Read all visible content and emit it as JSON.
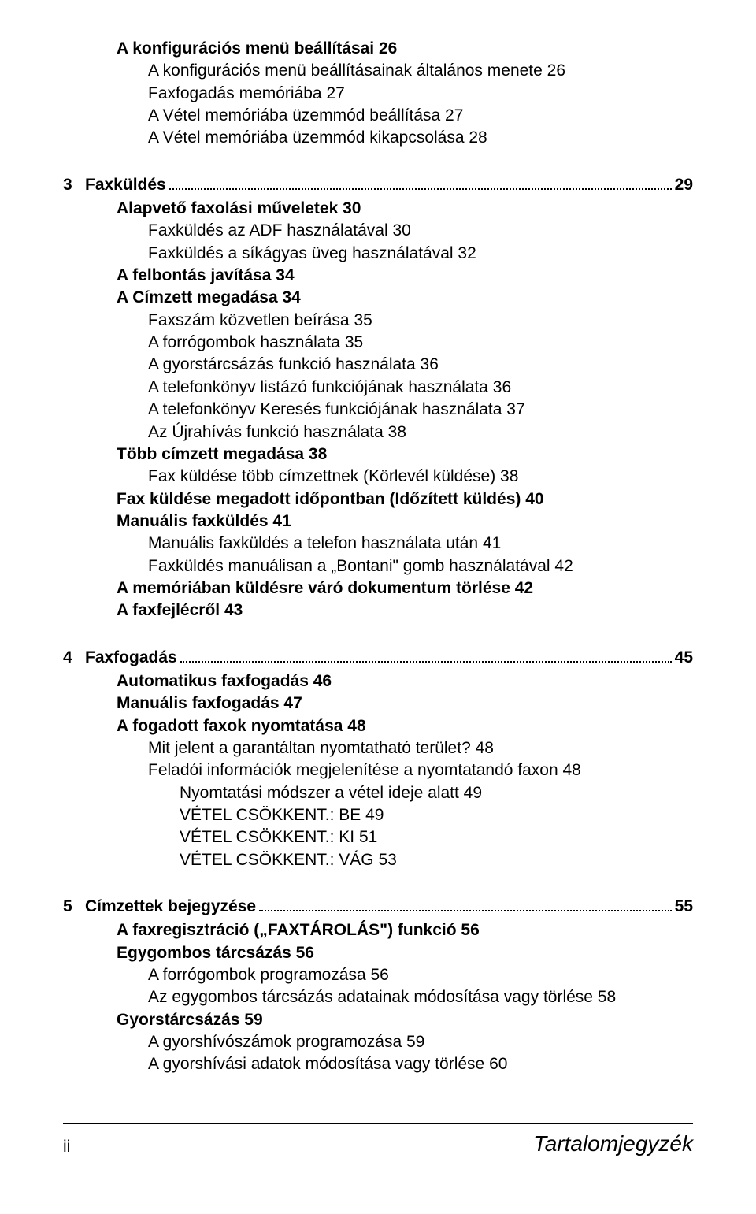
{
  "block2": {
    "l0a": "A konfigurációs menü beállításai 26",
    "l1a": "A konfigurációs menü beállításainak általános menete 26",
    "l1b": "Faxfogadás memóriába 27",
    "l1c": "A Vétel memóriába üzemmód beállítása 27",
    "l1d": "A Vétel memóriába üzemmód kikapcsolása 28"
  },
  "sec3": {
    "num": "3",
    "title": "Faxküldés",
    "page": "29"
  },
  "block3": {
    "l0a": "Alapvető faxolási műveletek 30",
    "l1a": "Faxküldés az ADF használatával 30",
    "l1b": "Faxküldés a síkágyas üveg használatával 32",
    "l0b": "A felbontás javítása 34",
    "l0c": "A Címzett megadása 34",
    "l1c": "Faxszám közvetlen beírása 35",
    "l1d": "A forrógombok használata 35",
    "l1e": "A gyorstárcsázás funkció használata 36",
    "l1f": "A telefonkönyv listázó funkciójának használata 36",
    "l1g": "A telefonkönyv Keresés funkciójának használata 37",
    "l1h": "Az Újrahívás funkció használata 38",
    "l0d": "Több címzett megadása 38",
    "l1i": "Fax küldése több címzettnek (Körlevél küldése) 38",
    "l0e": "Fax küldése megadott időpontban (Időzített küldés) 40",
    "l0f": "Manuális faxküldés 41",
    "l1j": "Manuális faxküldés a telefon használata után 41",
    "l1k": "Faxküldés manuálisan a „Bontani\" gomb használatával 42",
    "l0g": "A memóriában küldésre váró dokumentum törlése 42",
    "l0h": "A faxfejlécről 43"
  },
  "sec4": {
    "num": "4",
    "title": "Faxfogadás",
    "page": "45"
  },
  "block4": {
    "l0a": "Automatikus faxfogadás 46",
    "l0b": "Manuális faxfogadás 47",
    "l0c": "A fogadott faxok nyomtatása 48",
    "l1a": "Mit jelent a garantáltan nyomtatható terület? 48",
    "l1b": "Feladói információk megjelenítése a nyomtatandó faxon 48",
    "l2a": "Nyomtatási módszer a vétel ideje alatt 49",
    "l2b": "VÉTEL CSÖKKENT.: BE 49",
    "l2c": "VÉTEL CSÖKKENT.: KI 51",
    "l2d": "VÉTEL CSÖKKENT.: VÁG 53"
  },
  "sec5": {
    "num": "5",
    "title": "Címzettek bejegyzése",
    "page": "55"
  },
  "block5": {
    "l0a": "A faxregisztráció („FAXTÁROLÁS\") funkció 56",
    "l0b": "Egygombos tárcsázás 56",
    "l1a": "A forrógombok programozása 56",
    "l1b": "Az egygombos tárcsázás adatainak módosítása vagy törlése 58",
    "l0c": "Gyorstárcsázás 59",
    "l1c": "A gyorshívószámok programozása 59",
    "l1d": "A gyorshívási adatok módosítása vagy törlése 60"
  },
  "footer": {
    "left": "ii",
    "right": "Tartalomjegyzék"
  }
}
